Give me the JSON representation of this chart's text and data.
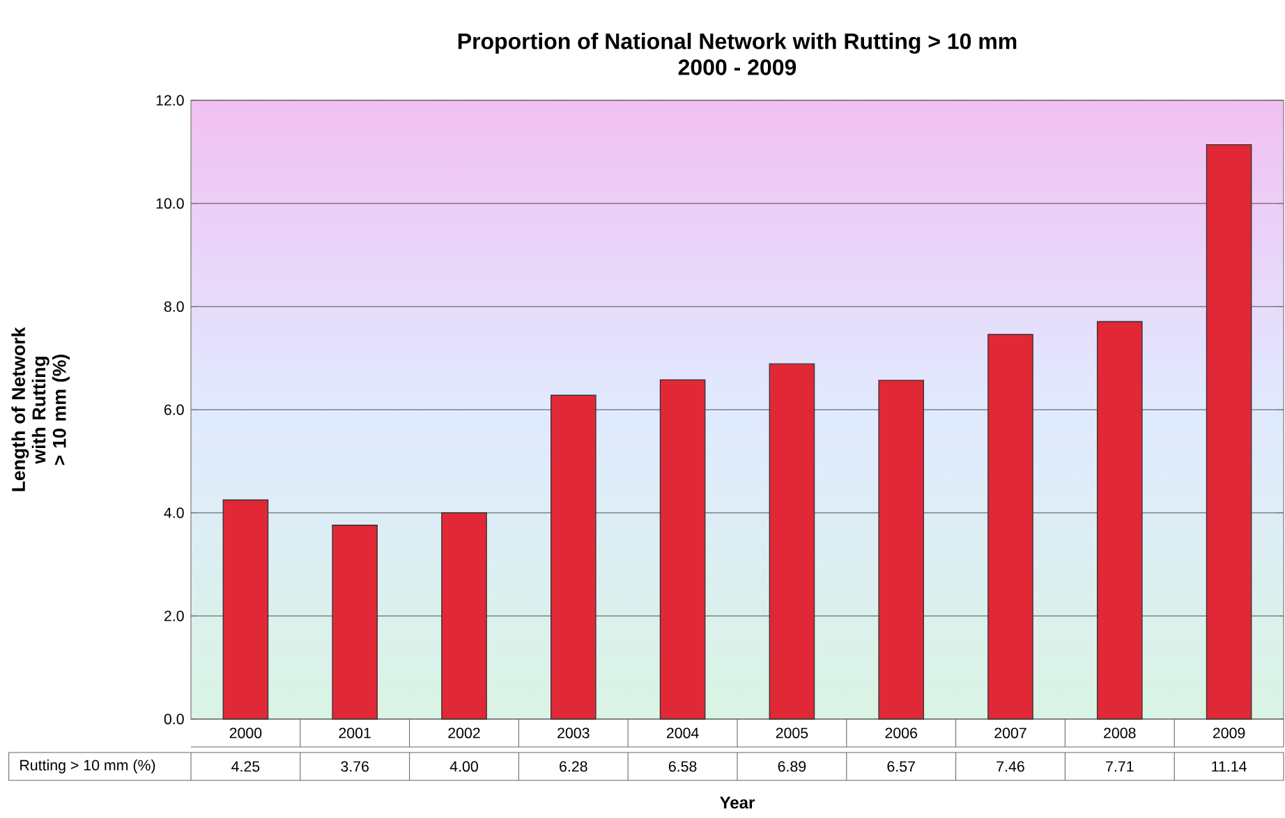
{
  "chart_data": {
    "type": "bar",
    "title": "Proportion of National Network with Rutting > 10 mm",
    "subtitle": "2000 - 2009",
    "xlabel": "Year",
    "ylabel": "Length of Network with Rutting > 10 mm (%)",
    "categories": [
      "2000",
      "2001",
      "2002",
      "2003",
      "2004",
      "2005",
      "2006",
      "2007",
      "2008",
      "2009"
    ],
    "series": [
      {
        "name": "Rutting > 10 mm (%)",
        "color": "#e02837",
        "values": [
          4.25,
          3.76,
          4.0,
          6.28,
          6.58,
          6.89,
          6.57,
          7.46,
          7.71,
          11.14
        ],
        "value_labels": [
          "4.25",
          "3.76",
          "4.00",
          "6.28",
          "6.58",
          "6.89",
          "6.57",
          "7.46",
          "7.71",
          "11.14"
        ]
      }
    ],
    "ylim": [
      0,
      12
    ],
    "yticks": [
      {
        "value": 0,
        "label": "0.0"
      },
      {
        "value": 2,
        "label": "2.0"
      },
      {
        "value": 4,
        "label": "4.0"
      },
      {
        "value": 6,
        "label": "6.0"
      },
      {
        "value": 8,
        "label": "8.0"
      },
      {
        "value": 10,
        "label": "10.0"
      },
      {
        "value": 12,
        "label": "12.0"
      }
    ],
    "grid": "y",
    "legend": false
  }
}
